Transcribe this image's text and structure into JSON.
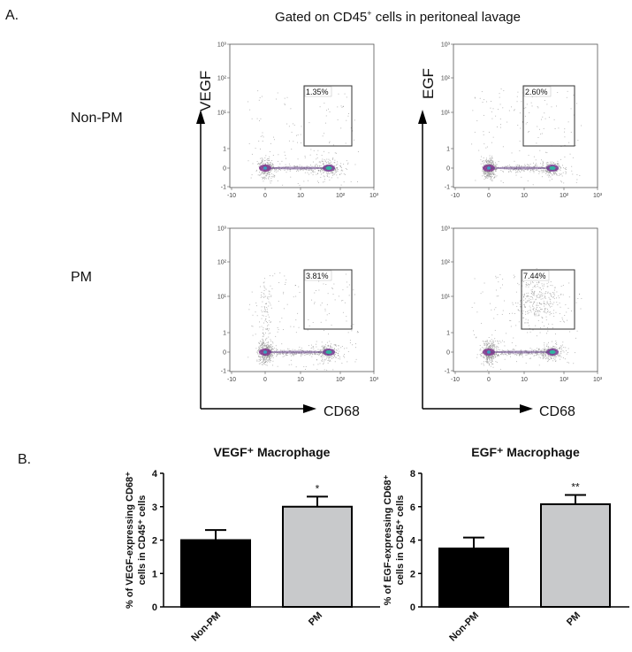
{
  "panel_a": {
    "label": "A.",
    "title": "Gated on CD45",
    "title_sup": "+",
    "title_rest": " cells in peritoneal lavage",
    "row_labels": [
      "Non-PM",
      "PM"
    ],
    "x_axis_label": "CD68",
    "y_axis_labels": [
      "VEGF",
      "EGF"
    ],
    "axis_ticks_x": [
      "-10",
      "0",
      "10",
      "10²",
      "10³"
    ],
    "axis_ticks_y": [
      "10³",
      "10²",
      "10¹",
      "1",
      "0",
      "-1"
    ],
    "plots": [
      {
        "row": "Non-PM",
        "marker": "VEGF",
        "gate_percent": "1.35%"
      },
      {
        "row": "Non-PM",
        "marker": "EGF",
        "gate_percent": "2.60%"
      },
      {
        "row": "PM",
        "marker": "VEGF",
        "gate_percent": "3.81%"
      },
      {
        "row": "PM",
        "marker": "EGF",
        "gate_percent": "7.44%"
      }
    ]
  },
  "panel_b": {
    "label": "B."
  },
  "chart_data": [
    {
      "type": "bar",
      "title": "VEGF⁺ Macrophage",
      "ylabel_line1": "% of VEGF-expressing CD68⁺",
      "ylabel_line2": "cells in CD45⁺ cells",
      "categories": [
        "Non-PM",
        "PM"
      ],
      "values": [
        2.0,
        3.0
      ],
      "errors": [
        0.3,
        0.3
      ],
      "significance": [
        "",
        "*"
      ],
      "bar_colors": [
        "#000000",
        "#c8c9cb"
      ],
      "ylim": [
        0,
        4
      ],
      "yticks": [
        "0",
        "1",
        "2",
        "3",
        "4"
      ]
    },
    {
      "type": "bar",
      "title": "EGF⁺ Macrophage",
      "ylabel_line1": "% of EGF-expressing CD68⁺",
      "ylabel_line2": "cells in CD45⁺ cells",
      "categories": [
        "Non-PM",
        "PM"
      ],
      "values": [
        3.5,
        6.15
      ],
      "errors": [
        0.65,
        0.55
      ],
      "significance": [
        "",
        "**"
      ],
      "bar_colors": [
        "#000000",
        "#c8c9cb"
      ],
      "ylim": [
        0,
        8
      ],
      "yticks": [
        "0",
        "2",
        "4",
        "6",
        "8"
      ]
    }
  ]
}
